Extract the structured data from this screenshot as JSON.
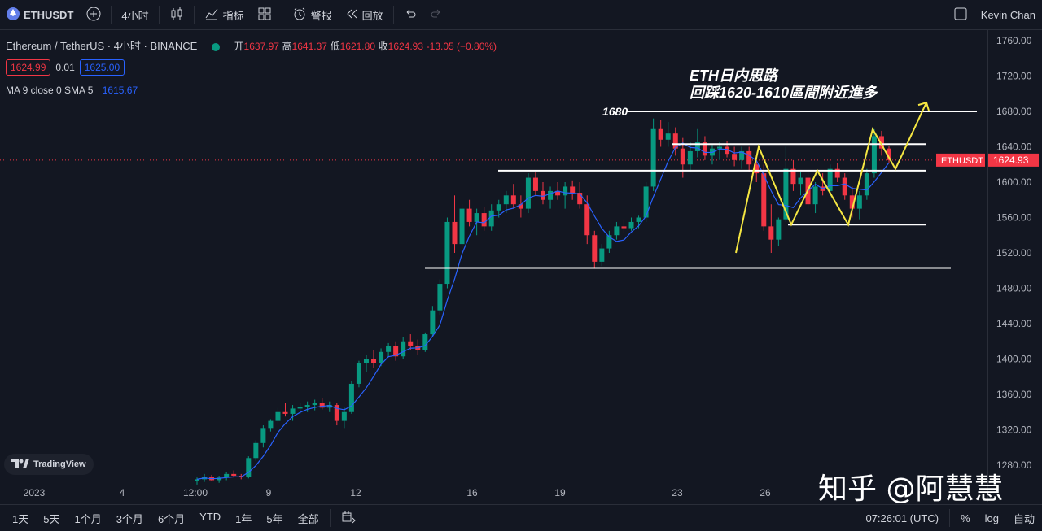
{
  "toolbar": {
    "symbol": "ETHUSDT",
    "interval": "4小时",
    "indicators": "指标",
    "alert": "警报",
    "replay": "回放",
    "user": "Kevin Chan"
  },
  "legend": {
    "title": "Ethereum / TetherUS · 4小时 · BINANCE",
    "open_label": "开",
    "open": "1637.97",
    "high_label": "高",
    "high": "1641.37",
    "low_label": "低",
    "low": "1621.80",
    "close_label": "收",
    "close": "1624.93",
    "change": "-13.05 (−0.80%)",
    "bid": "1624.99",
    "spread": "0.01",
    "ask": "1625.00",
    "ma_label": "MA 9 close 0 SMA 5",
    "ma_value": "1615.67"
  },
  "annotation": {
    "line1": "ETH日内思路",
    "line2": "回踩1620-1610區間附近進多",
    "level_1680": "1680"
  },
  "price_tag": {
    "symbol": "ETHUSDT",
    "price": "1624.93"
  },
  "ranges": [
    "1天",
    "5天",
    "1个月",
    "3个月",
    "6个月",
    "YTD",
    "1年",
    "5年",
    "全部"
  ],
  "status": {
    "time": "07:26:01 (UTC)",
    "pct": "%",
    "log": "log",
    "auto": "自动"
  },
  "watermark": "知乎 @阿慧慧",
  "tv_logo": "TradingView",
  "colors": {
    "up": "#089981",
    "down": "#f23645",
    "ma": "#2962ff",
    "bg": "#131722",
    "yellow": "#f5e642"
  },
  "chart_data": {
    "type": "candlestick",
    "y_ticks": [
      1760,
      1720,
      1680,
      1640,
      1600,
      1560,
      1520,
      1480,
      1440,
      1400,
      1360,
      1320,
      1280
    ],
    "ylim": [
      1240,
      1775
    ],
    "x_tick_labels": [
      "2023",
      "4",
      "12:00",
      "9",
      "12",
      "16",
      "19",
      "23",
      "26"
    ],
    "candles_ohlc": [
      [
        1262,
        1266,
        1258,
        1264
      ],
      [
        1264,
        1270,
        1261,
        1267
      ],
      [
        1267,
        1269,
        1262,
        1263
      ],
      [
        1263,
        1268,
        1260,
        1266
      ],
      [
        1266,
        1272,
        1263,
        1270
      ],
      [
        1270,
        1274,
        1266,
        1268
      ],
      [
        1268,
        1270,
        1264,
        1267
      ],
      [
        1267,
        1290,
        1265,
        1288
      ],
      [
        1288,
        1308,
        1285,
        1305
      ],
      [
        1305,
        1325,
        1300,
        1322
      ],
      [
        1322,
        1332,
        1318,
        1330
      ],
      [
        1330,
        1345,
        1326,
        1340
      ],
      [
        1340,
        1350,
        1335,
        1338
      ],
      [
        1338,
        1348,
        1330,
        1344
      ],
      [
        1344,
        1350,
        1338,
        1346
      ],
      [
        1346,
        1352,
        1340,
        1348
      ],
      [
        1348,
        1354,
        1342,
        1350
      ],
      [
        1350,
        1356,
        1343,
        1345
      ],
      [
        1345,
        1352,
        1340,
        1348
      ],
      [
        1348,
        1350,
        1325,
        1330
      ],
      [
        1330,
        1345,
        1322,
        1340
      ],
      [
        1340,
        1375,
        1338,
        1372
      ],
      [
        1372,
        1398,
        1368,
        1395
      ],
      [
        1395,
        1405,
        1385,
        1400
      ],
      [
        1400,
        1410,
        1390,
        1395
      ],
      [
        1395,
        1412,
        1392,
        1408
      ],
      [
        1408,
        1418,
        1402,
        1415
      ],
      [
        1415,
        1420,
        1398,
        1403
      ],
      [
        1403,
        1425,
        1400,
        1420
      ],
      [
        1420,
        1428,
        1410,
        1415
      ],
      [
        1415,
        1422,
        1405,
        1410
      ],
      [
        1410,
        1430,
        1408,
        1428
      ],
      [
        1428,
        1460,
        1425,
        1455
      ],
      [
        1455,
        1490,
        1450,
        1485
      ],
      [
        1485,
        1560,
        1480,
        1555
      ],
      [
        1555,
        1585,
        1520,
        1530
      ],
      [
        1530,
        1575,
        1525,
        1570
      ],
      [
        1570,
        1580,
        1550,
        1555
      ],
      [
        1555,
        1570,
        1540,
        1565
      ],
      [
        1565,
        1572,
        1545,
        1550
      ],
      [
        1550,
        1575,
        1545,
        1568
      ],
      [
        1568,
        1580,
        1560,
        1575
      ],
      [
        1575,
        1590,
        1565,
        1585
      ],
      [
        1585,
        1598,
        1570,
        1575
      ],
      [
        1575,
        1585,
        1560,
        1570
      ],
      [
        1570,
        1610,
        1565,
        1605
      ],
      [
        1605,
        1612,
        1585,
        1590
      ],
      [
        1590,
        1600,
        1575,
        1580
      ],
      [
        1580,
        1595,
        1570,
        1590
      ],
      [
        1590,
        1600,
        1580,
        1585
      ],
      [
        1585,
        1600,
        1570,
        1595
      ],
      [
        1595,
        1602,
        1580,
        1588
      ],
      [
        1588,
        1600,
        1570,
        1575
      ],
      [
        1575,
        1585,
        1530,
        1540
      ],
      [
        1540,
        1545,
        1502,
        1510
      ],
      [
        1510,
        1530,
        1505,
        1525
      ],
      [
        1525,
        1545,
        1520,
        1540
      ],
      [
        1540,
        1555,
        1535,
        1550
      ],
      [
        1550,
        1558,
        1542,
        1548
      ],
      [
        1548,
        1560,
        1545,
        1555
      ],
      [
        1555,
        1562,
        1548,
        1560
      ],
      [
        1560,
        1600,
        1555,
        1595
      ],
      [
        1595,
        1672,
        1590,
        1660
      ],
      [
        1660,
        1670,
        1640,
        1648
      ],
      [
        1648,
        1668,
        1640,
        1655
      ],
      [
        1655,
        1662,
        1630,
        1638
      ],
      [
        1638,
        1650,
        1605,
        1620
      ],
      [
        1620,
        1645,
        1612,
        1635
      ],
      [
        1635,
        1660,
        1628,
        1645
      ],
      [
        1645,
        1652,
        1625,
        1630
      ],
      [
        1630,
        1642,
        1620,
        1638
      ],
      [
        1638,
        1645,
        1625,
        1640
      ],
      [
        1640,
        1646,
        1628,
        1632
      ],
      [
        1632,
        1640,
        1618,
        1625
      ],
      [
        1625,
        1640,
        1615,
        1635
      ],
      [
        1635,
        1640,
        1612,
        1620
      ],
      [
        1620,
        1630,
        1600,
        1610
      ],
      [
        1610,
        1620,
        1545,
        1550
      ],
      [
        1550,
        1575,
        1520,
        1535
      ],
      [
        1535,
        1560,
        1528,
        1558
      ],
      [
        1558,
        1640,
        1555,
        1615
      ],
      [
        1615,
        1625,
        1590,
        1598
      ],
      [
        1598,
        1612,
        1585,
        1605
      ],
      [
        1605,
        1612,
        1570,
        1575
      ],
      [
        1575,
        1600,
        1565,
        1595
      ],
      [
        1595,
        1610,
        1585,
        1590
      ],
      [
        1590,
        1620,
        1582,
        1615
      ],
      [
        1615,
        1622,
        1600,
        1605
      ],
      [
        1605,
        1610,
        1580,
        1585
      ],
      [
        1585,
        1595,
        1560,
        1570
      ],
      [
        1570,
        1590,
        1558,
        1585
      ],
      [
        1585,
        1615,
        1580,
        1610
      ],
      [
        1610,
        1660,
        1605,
        1652
      ],
      [
        1652,
        1658,
        1630,
        1638
      ],
      [
        1638,
        1641,
        1621,
        1625
      ]
    ],
    "ma": {
      "name": "MA 9 close 0 SMA 5",
      "last": 1615.67
    },
    "horizontal_lines": [
      1680,
      1643,
      1613,
      1605,
      1552,
      1503
    ],
    "price_line": 1624.93
  }
}
